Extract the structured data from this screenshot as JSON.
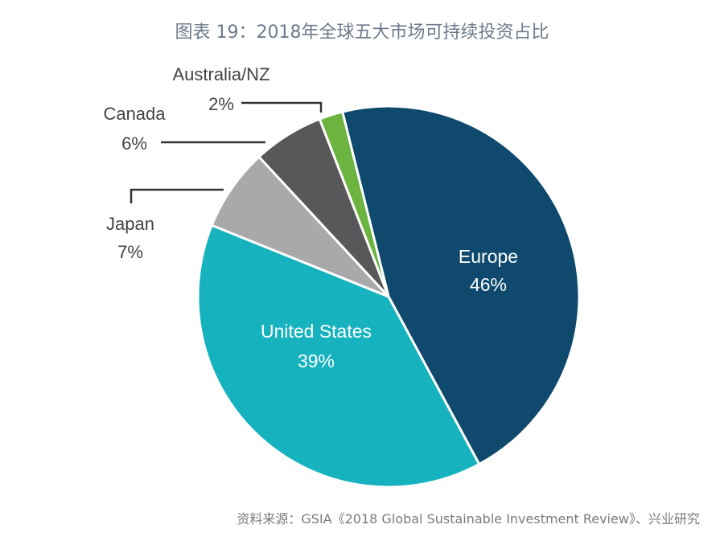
{
  "title": "图表 19：2018年全球五大市场可持续投资占比",
  "source": "资料来源：GSIA《2018 Global Sustainable Investment Review》、兴业研究",
  "chart_data": {
    "type": "pie",
    "title": "图表 19：2018年全球五大市场可持续投资占比",
    "unit": "%",
    "slices": [
      {
        "label": "Europe",
        "value": 46,
        "display": "46%",
        "color": "#0f4a6e"
      },
      {
        "label": "United States",
        "value": 39,
        "display": "39%",
        "color": "#16b3bf"
      },
      {
        "label": "Japan",
        "value": 7,
        "display": "7%",
        "color": "#a9a9ab"
      },
      {
        "label": "Canada",
        "value": 6,
        "display": "6%",
        "color": "#58585a"
      },
      {
        "label": "Australia/NZ",
        "value": 2,
        "display": "2%",
        "color": "#6cb43f"
      }
    ]
  }
}
